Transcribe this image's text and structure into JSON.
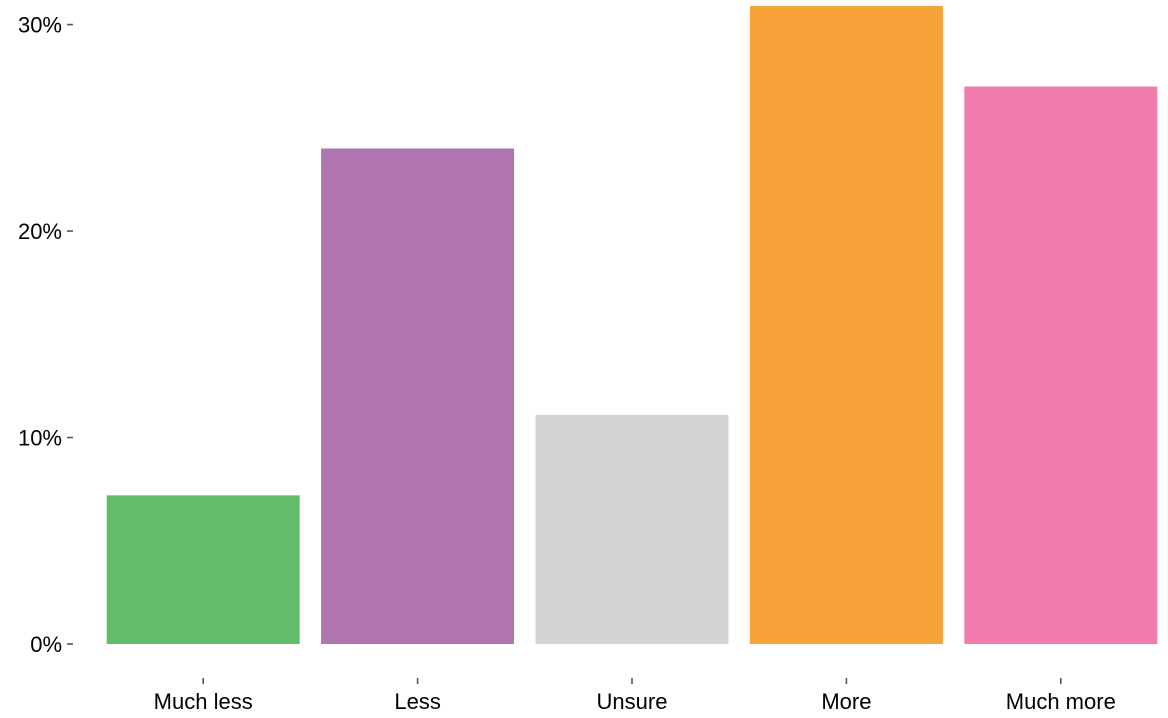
{
  "chart_data": {
    "type": "bar",
    "title": "",
    "xlabel": "",
    "ylabel": "",
    "categories": [
      "Much less",
      "Less",
      "Unsure",
      "More",
      "Much more"
    ],
    "values": [
      7.2,
      24.0,
      11.1,
      30.9,
      27.0
    ],
    "colors": [
      "#61bd6a",
      "#b075b0",
      "#d3d3d3",
      "#f8a33a",
      "#f07bad"
    ],
    "ylim": [
      0,
      30.9
    ],
    "y_ticks": [
      0,
      10,
      20,
      30
    ],
    "y_tick_labels": [
      "0%",
      "10%",
      "20%",
      "30%"
    ],
    "grid": false,
    "legend": "none"
  }
}
